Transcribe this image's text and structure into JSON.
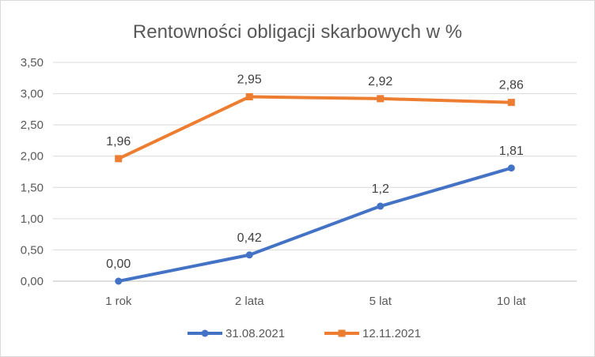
{
  "chart_data": {
    "type": "line",
    "title": "Rentowności obligacji skarbowych w %",
    "xlabel": "",
    "ylabel": "",
    "categories": [
      "1 rok",
      "2 lata",
      "5 lat",
      "10 lat"
    ],
    "ylim": [
      0,
      3.5
    ],
    "y_ticks": [
      "0,00",
      "0,50",
      "1,00",
      "1,50",
      "2,00",
      "2,50",
      "3,00",
      "3,50"
    ],
    "grid": true,
    "legend_position": "bottom",
    "series": [
      {
        "name": "31.08.2021",
        "values": [
          0.0,
          0.42,
          1.2,
          1.81
        ],
        "labels": [
          "0,00",
          "0,42",
          "1,2",
          "1,81"
        ],
        "color": "#4472C4",
        "marker": "circle"
      },
      {
        "name": "12.11.2021",
        "values": [
          1.96,
          2.95,
          2.92,
          2.86
        ],
        "labels": [
          "1,96",
          "2,95",
          "2,92",
          "2,86"
        ],
        "color": "#ED7D31",
        "marker": "square"
      }
    ]
  }
}
